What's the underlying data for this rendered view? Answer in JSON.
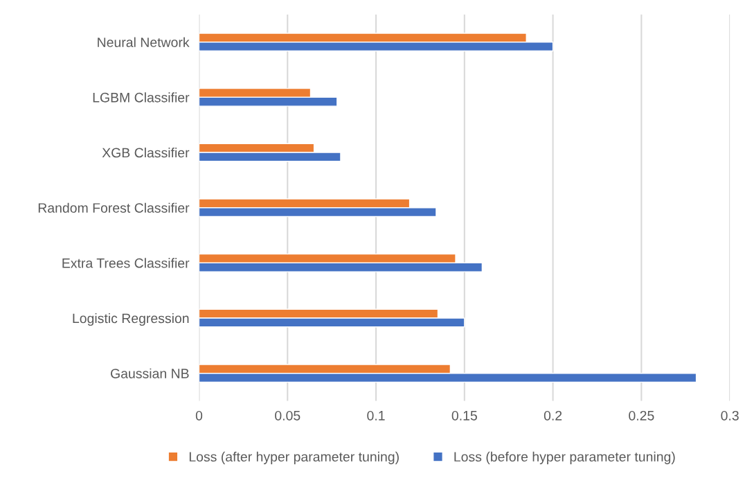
{
  "chart_data": {
    "type": "bar",
    "orientation": "horizontal",
    "categories": [
      "Neural Network",
      "LGBM Classifier",
      "XGB Classifier",
      "Random Forest Classifier",
      "Extra Trees Classifier",
      "Logistic Regression",
      "Gaussian NB"
    ],
    "series": [
      {
        "name": "Loss (after hyper parameter tuning)",
        "color": "#ed7d31",
        "values": [
          0.185,
          0.063,
          0.065,
          0.119,
          0.145,
          0.135,
          0.142
        ]
      },
      {
        "name": "Loss (before hyper parameter tuning)",
        "color": "#4472c4",
        "values": [
          0.2,
          0.078,
          0.08,
          0.134,
          0.16,
          0.15,
          0.281
        ]
      }
    ],
    "xlim": [
      0,
      0.3
    ],
    "xticks": [
      0,
      0.05,
      0.1,
      0.15,
      0.2,
      0.25,
      0.3
    ],
    "grid": "x",
    "legend": "bottom"
  }
}
